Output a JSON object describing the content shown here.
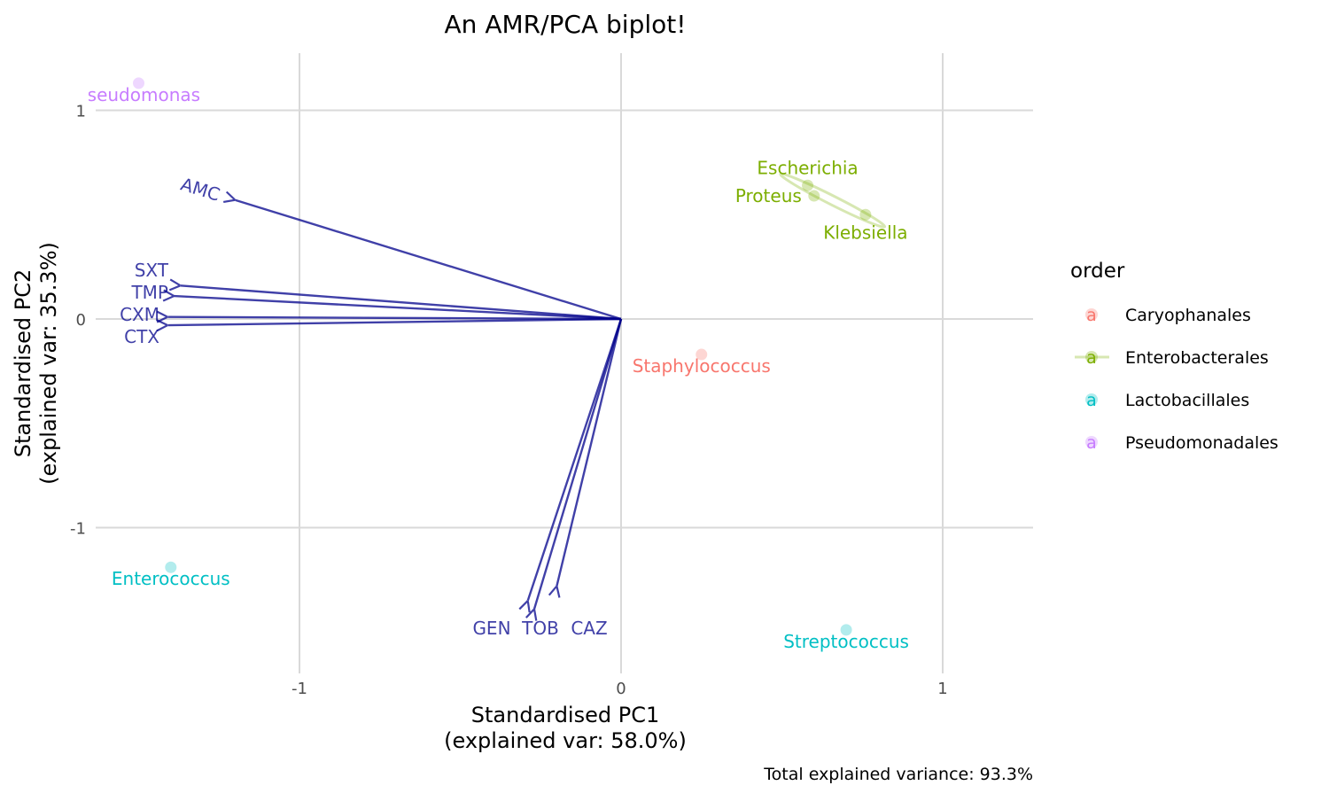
{
  "chart_data": {
    "type": "scatter",
    "title": "An AMR/PCA biplot!",
    "xlabel": "Standardised PC1\n(explained var: 58.0%)",
    "ylabel": "Standardised PC2\n(explained var: 35.3%)",
    "caption": "Total explained variance: 93.3%",
    "xlim": [
      -1.6,
      1.28
    ],
    "ylim": [
      -1.68,
      1.32
    ],
    "x_ticks": [
      -1,
      0,
      1
    ],
    "y_ticks": [
      -1,
      0,
      1
    ],
    "x_tick_labels": [
      "-1",
      "0",
      "1"
    ],
    "y_tick_labels": [
      "-1",
      "0",
      "1"
    ],
    "grid": true,
    "legend": {
      "title": "order",
      "position": "right",
      "items": [
        {
          "label": "Caryophanales",
          "color": "#F8766D"
        },
        {
          "label": "Enterobacterales",
          "color": "#7CAE00"
        },
        {
          "label": "Lactobacillales",
          "color": "#00BFC4"
        },
        {
          "label": "Pseudomonadales",
          "color": "#C77CFF"
        }
      ]
    },
    "points": [
      {
        "label": "Pseudomonas",
        "group": "Pseudomonadales",
        "x": -1.5,
        "y": 1.13
      },
      {
        "label": "Escherichia",
        "group": "Enterobacterales",
        "x": 0.58,
        "y": 0.64
      },
      {
        "label": "Proteus",
        "group": "Enterobacterales",
        "x": 0.6,
        "y": 0.59
      },
      {
        "label": "Klebsiella",
        "group": "Enterobacterales",
        "x": 0.76,
        "y": 0.5
      },
      {
        "label": "Staphylococcus",
        "group": "Caryophanales",
        "x": 0.25,
        "y": -0.17
      },
      {
        "label": "Enterococcus",
        "group": "Lactobacillales",
        "x": -1.4,
        "y": -1.19
      },
      {
        "label": "Streptococcus",
        "group": "Lactobacillales",
        "x": 0.7,
        "y": -1.49
      }
    ],
    "ellipse_groups": [
      "Enterobacterales"
    ],
    "arrow_color": "#00008B",
    "loadings": [
      {
        "label": "AMC",
        "x": -1.2,
        "y": 0.57
      },
      {
        "label": "SXT",
        "x": -1.37,
        "y": 0.16
      },
      {
        "label": "TMP",
        "x": -1.39,
        "y": 0.11
      },
      {
        "label": "CXM",
        "x": -1.41,
        "y": 0.01
      },
      {
        "label": "CTX",
        "x": -1.41,
        "y": -0.03
      },
      {
        "label": "GEN",
        "x": -0.29,
        "y": -1.35
      },
      {
        "label": "TOB",
        "x": -0.27,
        "y": -1.39
      },
      {
        "label": "CAZ",
        "x": -0.2,
        "y": -1.28
      }
    ]
  }
}
